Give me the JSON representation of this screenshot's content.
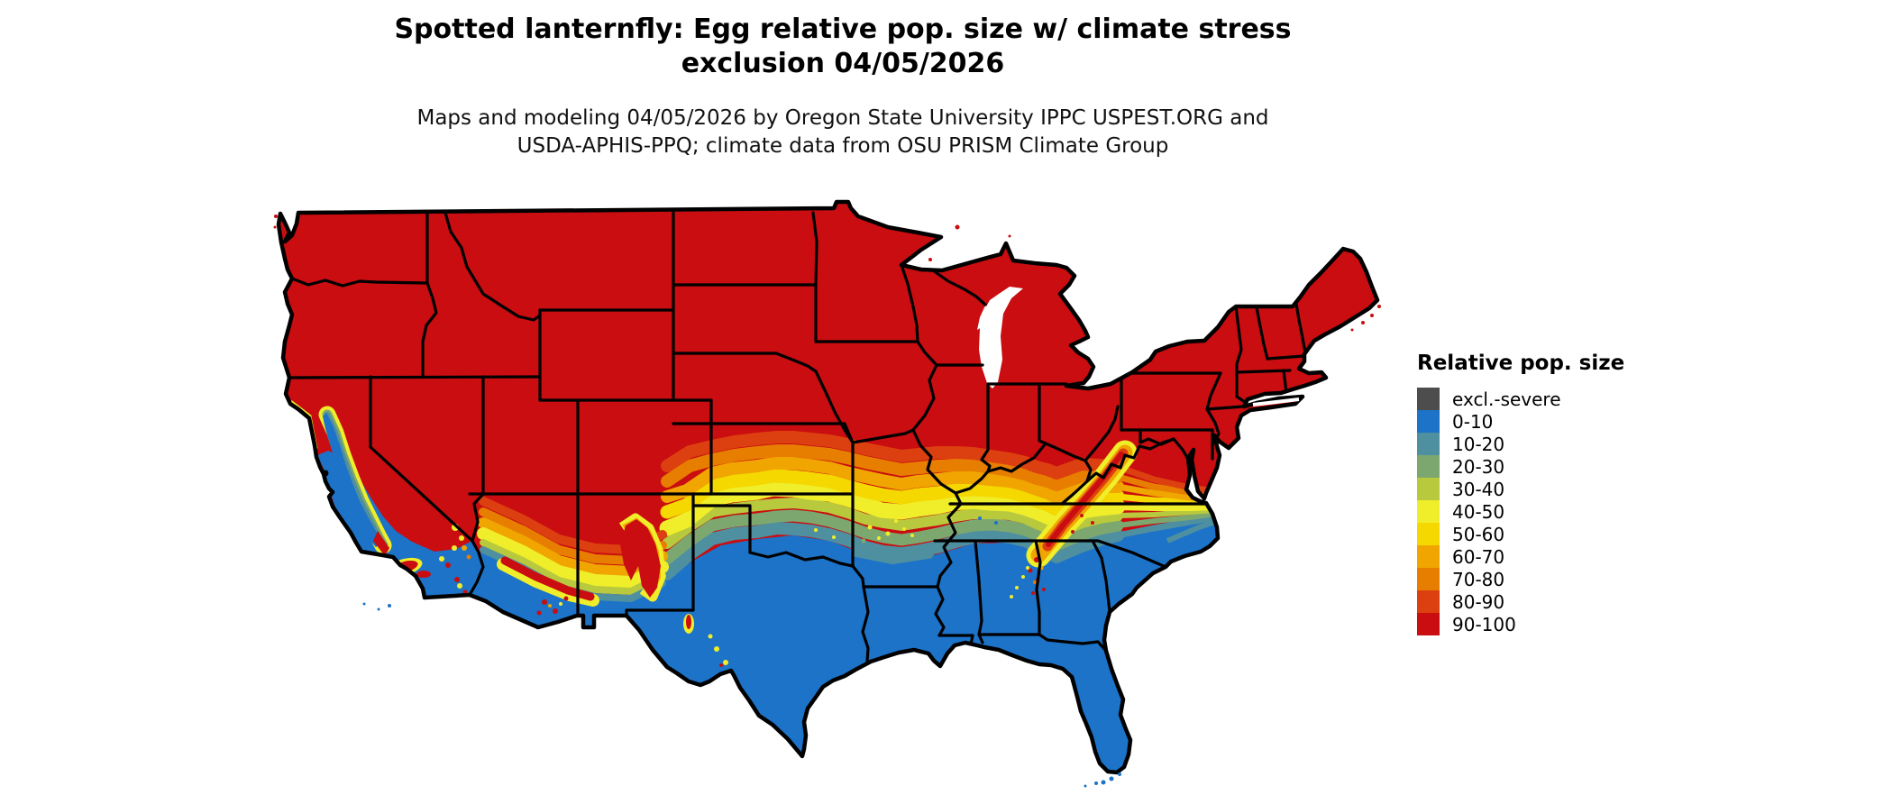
{
  "title": {
    "line1": "Spotted lanternfly: Egg relative pop. size w/ climate stress",
    "line2": "exclusion 04/05/2026"
  },
  "subtitle": {
    "line1": "Maps and modeling 04/05/2026 by Oregon State University IPPC USPEST.ORG and",
    "line2": "USDA-APHIS-PPQ; climate data from OSU PRISM Climate Group"
  },
  "legend": {
    "title": "Relative pop. size",
    "items": [
      {
        "label": "excl.-severe",
        "color": "#4d4d4d"
      },
      {
        "label": "0-10",
        "color": "#1c73c8"
      },
      {
        "label": "10-20",
        "color": "#4e8fa0"
      },
      {
        "label": "20-30",
        "color": "#7ca86f"
      },
      {
        "label": "30-40",
        "color": "#b8c93e"
      },
      {
        "label": "40-50",
        "color": "#f0ee2a"
      },
      {
        "label": "50-60",
        "color": "#f5d800"
      },
      {
        "label": "60-70",
        "color": "#f0a500"
      },
      {
        "label": "70-80",
        "color": "#e87e00"
      },
      {
        "label": "80-90",
        "color": "#dd4010"
      },
      {
        "label": "90-100",
        "color": "#c90d10"
      }
    ]
  },
  "map": {
    "type": "raster choropleth with state outlines",
    "region": "contiguous United States",
    "outline_color": "#000000",
    "background_color": "#ffffff"
  }
}
